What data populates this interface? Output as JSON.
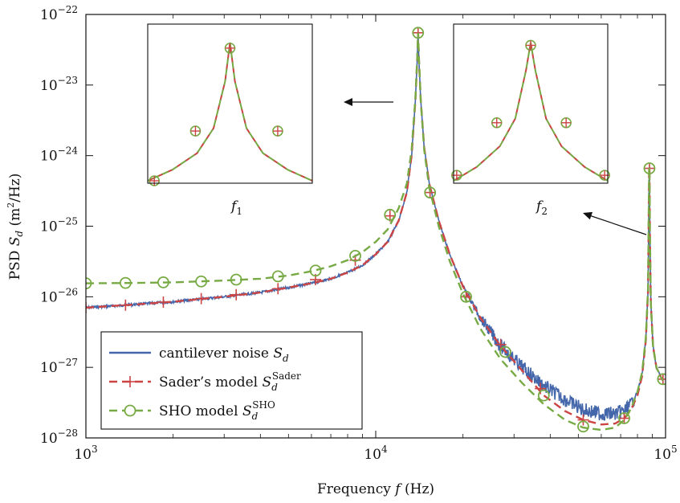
{
  "chart_data": {
    "type": "line",
    "xscale": "log",
    "yscale": "log",
    "xlim": [
      1000,
      100000
    ],
    "ylim": [
      1e-28,
      1e-22
    ],
    "xlabel": "Frequency f (Hz)",
    "ylabel": "PSD S_d (m²/Hz)",
    "x_ticks": [
      {
        "value": 1000,
        "base": "10",
        "exp": "3"
      },
      {
        "value": 10000,
        "base": "10",
        "exp": "4"
      },
      {
        "value": 100000,
        "base": "10",
        "exp": "5"
      }
    ],
    "y_ticks": [
      {
        "value": 1e-22,
        "base": "10",
        "exp": "−22"
      },
      {
        "value": 1e-23,
        "base": "10",
        "exp": "−23"
      },
      {
        "value": 1e-24,
        "base": "10",
        "exp": "−24"
      },
      {
        "value": 1e-25,
        "base": "10",
        "exp": "−25"
      },
      {
        "value": 1e-26,
        "base": "10",
        "exp": "−26"
      },
      {
        "value": 1e-27,
        "base": "10",
        "exp": "−27"
      },
      {
        "value": 1e-28,
        "base": "10",
        "exp": "−28"
      }
    ],
    "legend_position": "bottom-left",
    "series": [
      {
        "name": "cantilever noise S_d",
        "legend_label": {
          "main": "cantilever noise ",
          "sym": "S",
          "sub": "d",
          "sup": ""
        },
        "color": "#4466aa",
        "style": "solid-noisy",
        "marker": "none",
        "x": [
          1000,
          1500,
          2000,
          3000,
          4000,
          5000,
          6000,
          7000,
          8000,
          9000,
          10000,
          11000,
          12000,
          12800,
          13300,
          13700,
          13900,
          14000,
          14100,
          14300,
          14700,
          15300,
          16500,
          18000,
          20000,
          23000,
          27000,
          32000,
          38000,
          45000,
          52000,
          60000,
          67000,
          72000,
          76000,
          80000,
          83000,
          85500,
          87000,
          87800,
          88000,
          88300,
          89000,
          90500,
          93000,
          96000,
          98000
        ],
        "y": [
          7e-27,
          7.8e-27,
          8.5e-27,
          1e-26,
          1.15e-26,
          1.35e-26,
          1.55e-26,
          1.8e-26,
          2.2e-26,
          2.8e-26,
          4e-26,
          6e-26,
          1.2e-25,
          3e-25,
          1e-24,
          6e-24,
          2.2e-23,
          5.5e-23,
          2.2e-23,
          6e-24,
          1.3e-24,
          4e-25,
          1.2e-25,
          4e-26,
          1.4e-26,
          5e-27,
          2e-27,
          1e-27,
          5.5e-28,
          3.5e-28,
          2.5e-28,
          2.2e-28,
          2.2e-28,
          2.4e-28,
          3e-28,
          4.5e-28,
          8e-28,
          2.5e-27,
          1.2e-26,
          6.5e-25,
          6.8e-25,
          8e-26,
          8e-27,
          2e-27,
          1e-27,
          7.5e-28,
          6.5e-28
        ]
      },
      {
        "name": "Sader's model S_d^Sader",
        "legend_label": {
          "main": "Sader’s model ",
          "sym": "S",
          "sub": "d",
          "sup": "Sader"
        },
        "color": "#cc4444",
        "style": "dashed",
        "marker": "plus",
        "x": [
          1000,
          1500,
          2000,
          3000,
          4000,
          5000,
          6000,
          7000,
          8000,
          9000,
          10000,
          11000,
          12000,
          12800,
          13300,
          13700,
          13900,
          14000,
          14100,
          14300,
          14700,
          15300,
          16500,
          18000,
          20000,
          23000,
          27000,
          32000,
          38000,
          45000,
          52000,
          60000,
          67000,
          72000,
          76000,
          80000,
          83000,
          85500,
          87000,
          87800,
          88000,
          88300,
          89000,
          90500,
          93000,
          96000,
          98000
        ],
        "y": [
          7e-27,
          7.8e-27,
          8.5e-27,
          1e-26,
          1.15e-26,
          1.35e-26,
          1.55e-26,
          1.8e-26,
          2.2e-26,
          2.8e-26,
          4e-26,
          6e-26,
          1.2e-25,
          3e-25,
          1e-24,
          6e-24,
          2.2e-23,
          5.5e-23,
          2.2e-23,
          6e-24,
          1.3e-24,
          4e-25,
          1.2e-25,
          4e-26,
          1.4e-26,
          5e-27,
          2e-27,
          9e-28,
          4e-28,
          2.4e-28,
          1.8e-28,
          1.55e-28,
          1.6e-28,
          1.9e-28,
          2.5e-28,
          4e-28,
          7.5e-28,
          2.4e-27,
          1.2e-26,
          6.5e-25,
          6.8e-25,
          8e-26,
          8e-27,
          2e-27,
          1e-27,
          7.5e-28,
          6.5e-28
        ],
        "marker_x": [
          1000,
          1370,
          1850,
          2500,
          3300,
          4600,
          6200,
          8500,
          11200,
          14000,
          15400,
          20500,
          27000,
          37000,
          52000,
          72000,
          88000,
          98000
        ],
        "marker_y": [
          7e-27,
          7.6e-27,
          8.4e-27,
          9.4e-27,
          1.07e-26,
          1.3e-26,
          1.75e-26,
          3.3e-26,
          1.4e-25,
          5.5e-23,
          3e-25,
          1e-26,
          2.1e-27,
          5e-28,
          1.8e-28,
          1.9e-28,
          6.6e-25,
          6.8e-28
        ]
      },
      {
        "name": "SHO model S_d^SHO",
        "legend_label": {
          "main": "SHO model ",
          "sym": "S",
          "sub": "d",
          "sup": "SHO"
        },
        "color": "#77aa44",
        "style": "dashed",
        "marker": "circle",
        "x": [
          1000,
          1500,
          2000,
          3000,
          4000,
          5000,
          6000,
          7000,
          8000,
          9000,
          10000,
          11000,
          12000,
          12800,
          13300,
          13700,
          13900,
          14000,
          14100,
          14300,
          14700,
          15300,
          16500,
          18000,
          20000,
          23000,
          27000,
          32000,
          38000,
          45000,
          52000,
          60000,
          67000,
          72000,
          76000,
          80000,
          83000,
          85500,
          87000,
          87800,
          88000,
          88300,
          89000,
          90500,
          93000,
          96000,
          98000
        ],
        "y": [
          1.55e-26,
          1.57e-26,
          1.6e-26,
          1.7e-26,
          1.8e-26,
          2e-26,
          2.3e-26,
          2.7e-26,
          3.3e-26,
          4.3e-26,
          6e-26,
          9e-26,
          1.8e-25,
          4e-25,
          1.2e-24,
          6.5e-24,
          2.3e-23,
          5.5e-23,
          2.3e-23,
          6e-24,
          1.2e-24,
          3.5e-25,
          1e-25,
          3.2e-26,
          1.1e-26,
          3.5e-27,
          1.3e-27,
          6e-28,
          3e-28,
          1.8e-28,
          1.4e-28,
          1.3e-28,
          1.4e-28,
          1.8e-28,
          2.6e-28,
          4.5e-28,
          8.5e-28,
          2.6e-27,
          1.3e-26,
          6.5e-25,
          6.8e-25,
          8e-26,
          8e-27,
          2e-27,
          1e-27,
          7.5e-28,
          6.5e-28
        ],
        "marker_x": [
          1000,
          1370,
          1850,
          2500,
          3300,
          4600,
          6200,
          8500,
          11200,
          14000,
          15400,
          20500,
          28000,
          38000,
          52000,
          72000,
          88000,
          98000
        ],
        "marker_y": [
          1.55e-26,
          1.57e-26,
          1.6e-26,
          1.65e-26,
          1.75e-26,
          1.95e-26,
          2.35e-26,
          3.8e-26,
          1.45e-25,
          5.5e-23,
          3e-25,
          1e-26,
          1.65e-27,
          4e-28,
          1.45e-28,
          1.9e-28,
          6.6e-25,
          6.8e-28
        ]
      }
    ],
    "insets": [
      {
        "name": "inset-f1",
        "label": {
          "sym": "f",
          "sub": "1"
        },
        "peak": 5.5e-23,
        "curve_rel": [
          [
            0.0,
            0.0
          ],
          [
            0.15,
            0.08
          ],
          [
            0.3,
            0.2
          ],
          [
            0.4,
            0.38
          ],
          [
            0.47,
            0.72
          ],
          [
            0.5,
            1.0
          ],
          [
            0.53,
            0.72
          ],
          [
            0.6,
            0.38
          ],
          [
            0.7,
            0.2
          ],
          [
            0.85,
            0.08
          ],
          [
            1.0,
            0.0
          ]
        ],
        "markers_rel": [
          [
            0.04,
            0.0
          ],
          [
            0.29,
            0.36
          ],
          [
            0.5,
            0.96
          ],
          [
            0.79,
            0.36
          ]
        ]
      },
      {
        "name": "inset-f2",
        "label": {
          "sym": "f",
          "sub": "2"
        },
        "peak": 6.5e-25,
        "curve_rel": [
          [
            0.0,
            0.0
          ],
          [
            0.15,
            0.1
          ],
          [
            0.3,
            0.25
          ],
          [
            0.4,
            0.45
          ],
          [
            0.47,
            0.8
          ],
          [
            0.5,
            1.0
          ],
          [
            0.53,
            0.8
          ],
          [
            0.6,
            0.45
          ],
          [
            0.7,
            0.25
          ],
          [
            0.85,
            0.1
          ],
          [
            1.0,
            0.0
          ]
        ],
        "markers_rel": [
          [
            0.02,
            0.04
          ],
          [
            0.28,
            0.42
          ],
          [
            0.5,
            0.98
          ],
          [
            0.73,
            0.42
          ],
          [
            0.98,
            0.04
          ]
        ]
      }
    ]
  }
}
